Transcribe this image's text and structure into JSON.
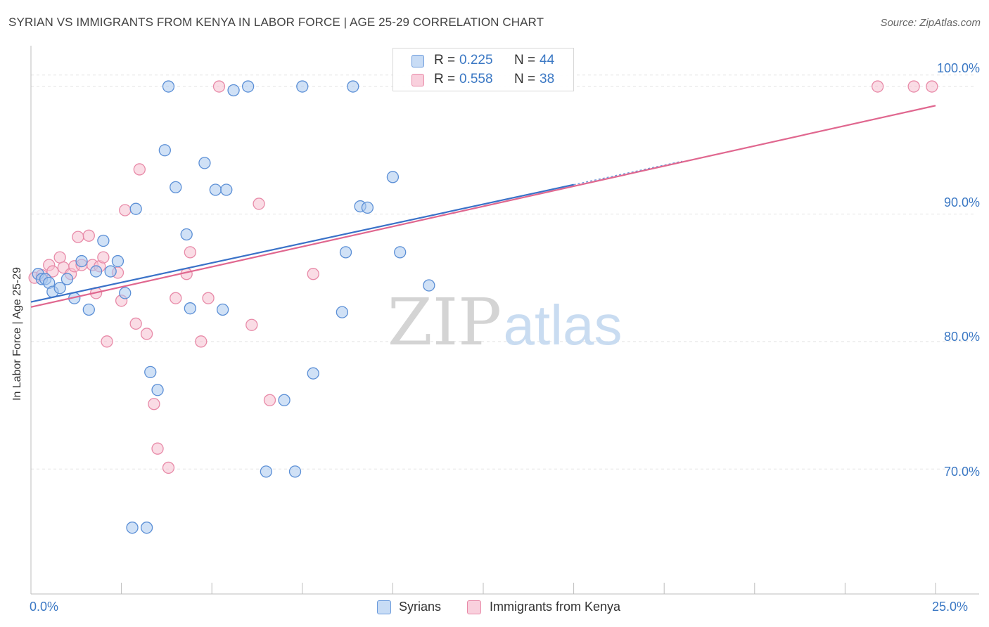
{
  "title": "SYRIAN VS IMMIGRANTS FROM KENYA IN LABOR FORCE | AGE 25-29 CORRELATION CHART",
  "source": "Source: ZipAtlas.com",
  "watermark": {
    "zip": "ZIP",
    "atlas": "atlas"
  },
  "legend_top": {
    "r_label": "R =",
    "n_label": "N =",
    "series": [
      {
        "r": "0.225",
        "n": "44"
      },
      {
        "r": "0.558",
        "n": "38"
      }
    ]
  },
  "legend_bottom": [
    "Syrians",
    "Immigrants from Kenya"
  ],
  "colors": {
    "syrians_fill": "#a9c8ee",
    "syrians_stroke": "#5b8fd6",
    "syrians_line": "#3a72c8",
    "kenya_fill": "#f6bfd0",
    "kenya_stroke": "#e88aa8",
    "kenya_line": "#e0678f",
    "tick_text": "#3b78c4",
    "grid": "#e3e3e3"
  },
  "chart_data": {
    "type": "scatter",
    "title": "SYRIAN VS IMMIGRANTS FROM KENYA IN LABOR FORCE | AGE 25-29 CORRELATION CHART",
    "xlabel": "",
    "ylabel": "In Labor Force | Age 25-29",
    "xlim": [
      0,
      25
    ],
    "ylim": [
      60.2,
      103.2
    ],
    "x_tick_labels": [
      "0.0%",
      "25.0%"
    ],
    "y_ticks": [
      70,
      80,
      90,
      100
    ],
    "y_tick_labels": [
      "70.0%",
      "80.0%",
      "90.0%",
      "100.0%"
    ],
    "grid": true,
    "series": [
      {
        "name": "Syrians",
        "r": 0.225,
        "n": 44,
        "trend": {
          "x0": 0,
          "y0": 83.1,
          "x1": 15.0,
          "y1": 92.3
        },
        "points": [
          [
            0.2,
            85.3
          ],
          [
            0.3,
            84.9
          ],
          [
            0.4,
            84.9
          ],
          [
            0.5,
            84.6
          ],
          [
            0.6,
            83.9
          ],
          [
            0.8,
            84.2
          ],
          [
            1.0,
            84.9
          ],
          [
            1.2,
            83.4
          ],
          [
            1.4,
            86.3
          ],
          [
            1.6,
            82.5
          ],
          [
            1.8,
            85.5
          ],
          [
            2.0,
            87.9
          ],
          [
            2.2,
            85.5
          ],
          [
            2.4,
            86.3
          ],
          [
            2.6,
            83.8
          ],
          [
            2.9,
            90.4
          ],
          [
            3.3,
            77.6
          ],
          [
            3.5,
            76.2
          ],
          [
            3.7,
            95.0
          ],
          [
            3.8,
            100.0
          ],
          [
            4.0,
            92.1
          ],
          [
            4.3,
            88.4
          ],
          [
            4.4,
            82.6
          ],
          [
            4.8,
            94.0
          ],
          [
            5.1,
            91.9
          ],
          [
            5.3,
            82.5
          ],
          [
            5.4,
            91.9
          ],
          [
            5.6,
            99.7
          ],
          [
            6.0,
            100.0
          ],
          [
            6.5,
            69.8
          ],
          [
            7.0,
            75.4
          ],
          [
            7.3,
            69.8
          ],
          [
            7.5,
            100.0
          ],
          [
            7.8,
            77.5
          ],
          [
            8.6,
            82.3
          ],
          [
            8.7,
            87.0
          ],
          [
            8.9,
            100.0
          ],
          [
            9.1,
            90.6
          ],
          [
            9.3,
            90.5
          ],
          [
            10.0,
            92.9
          ],
          [
            10.2,
            87.0
          ],
          [
            11.0,
            84.4
          ],
          [
            2.8,
            65.4
          ],
          [
            3.2,
            65.4
          ]
        ]
      },
      {
        "name": "Immigrants from Kenya",
        "r": 0.558,
        "n": 38,
        "trend": {
          "x0": 0,
          "y0": 82.7,
          "x1": 25.0,
          "y1": 98.5
        },
        "points": [
          [
            0.1,
            85.0
          ],
          [
            0.3,
            85.2
          ],
          [
            0.5,
            86.0
          ],
          [
            0.6,
            85.5
          ],
          [
            0.8,
            86.6
          ],
          [
            0.9,
            85.8
          ],
          [
            1.1,
            85.3
          ],
          [
            1.2,
            85.9
          ],
          [
            1.3,
            88.2
          ],
          [
            1.4,
            86.0
          ],
          [
            1.6,
            88.3
          ],
          [
            1.7,
            86.0
          ],
          [
            1.8,
            83.8
          ],
          [
            1.9,
            85.9
          ],
          [
            2.0,
            86.6
          ],
          [
            2.1,
            80.0
          ],
          [
            2.4,
            85.4
          ],
          [
            2.5,
            83.2
          ],
          [
            2.6,
            90.3
          ],
          [
            2.9,
            81.4
          ],
          [
            3.0,
            93.5
          ],
          [
            3.2,
            80.6
          ],
          [
            3.4,
            75.1
          ],
          [
            3.5,
            71.6
          ],
          [
            3.8,
            70.1
          ],
          [
            4.0,
            83.4
          ],
          [
            4.3,
            85.3
          ],
          [
            4.4,
            87.0
          ],
          [
            4.7,
            80.0
          ],
          [
            4.9,
            83.4
          ],
          [
            5.2,
            100.0
          ],
          [
            6.1,
            81.3
          ],
          [
            6.3,
            90.8
          ],
          [
            6.6,
            75.4
          ],
          [
            7.8,
            85.3
          ],
          [
            23.4,
            100.0
          ],
          [
            24.4,
            100.0
          ],
          [
            24.9,
            100.0
          ]
        ]
      }
    ]
  }
}
